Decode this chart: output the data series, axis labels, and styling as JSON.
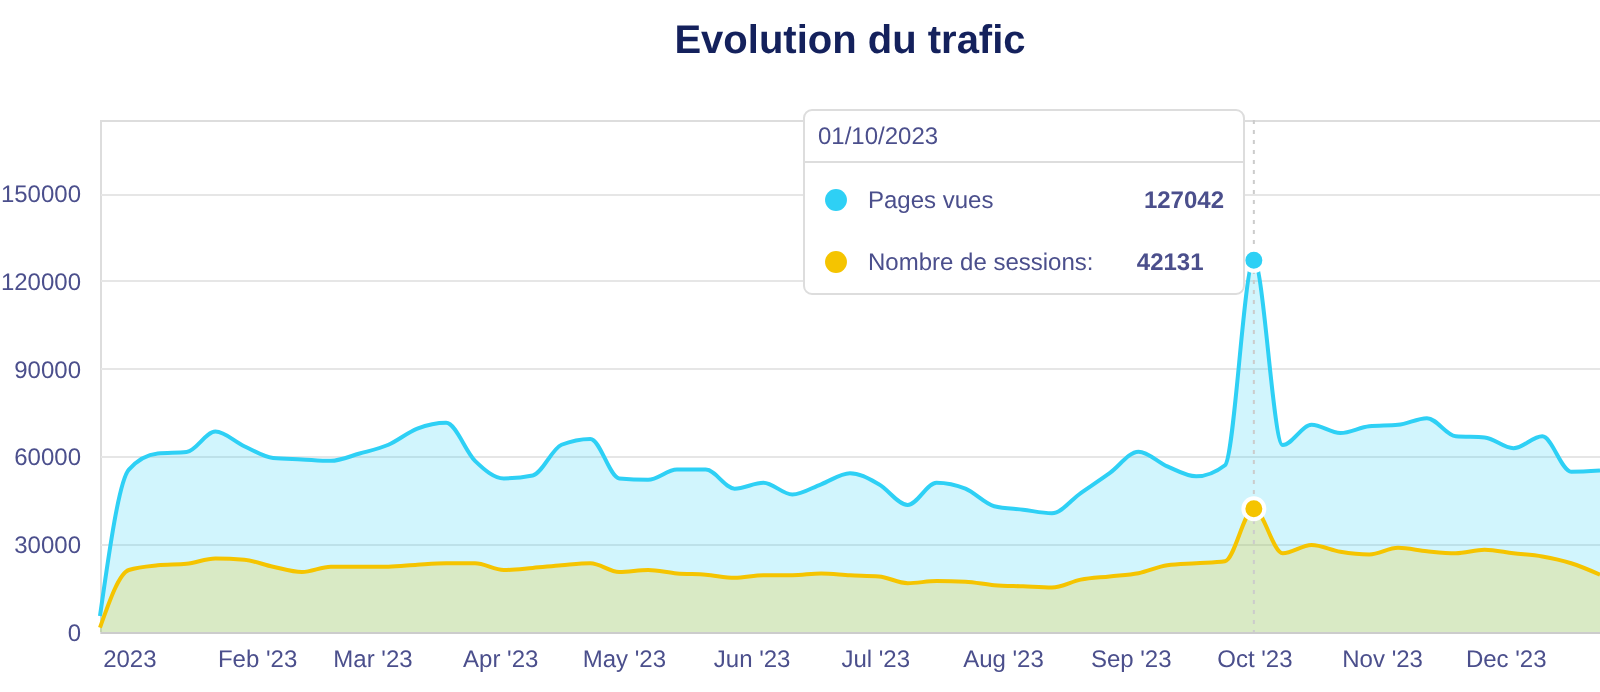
{
  "chart_data": {
    "type": "area",
    "title": "Evolution du trafic",
    "x": [
      "2022-12-25",
      "2023-01-01",
      "2023-01-08",
      "2023-01-15",
      "2023-01-22",
      "2023-01-29",
      "2023-02-05",
      "2023-02-12",
      "2023-02-19",
      "2023-02-26",
      "2023-03-05",
      "2023-03-12",
      "2023-03-19",
      "2023-03-26",
      "2023-04-02",
      "2023-04-09",
      "2023-04-16",
      "2023-04-23",
      "2023-04-30",
      "2023-05-07",
      "2023-05-14",
      "2023-05-21",
      "2023-05-28",
      "2023-06-04",
      "2023-06-11",
      "2023-06-18",
      "2023-06-25",
      "2023-07-02",
      "2023-07-09",
      "2023-07-16",
      "2023-07-23",
      "2023-07-30",
      "2023-08-06",
      "2023-08-13",
      "2023-08-20",
      "2023-08-27",
      "2023-09-03",
      "2023-09-10",
      "2023-09-17",
      "2023-09-24",
      "2023-10-01",
      "2023-10-08",
      "2023-10-15",
      "2023-10-22",
      "2023-10-29",
      "2023-11-05",
      "2023-11-12",
      "2023-11-19",
      "2023-11-26",
      "2023-12-03",
      "2023-12-10",
      "2023-12-17",
      "2023-12-24"
    ],
    "series": [
      {
        "name": "Pages vues",
        "color": "#2ed0f5",
        "values": [
          5500,
          55500,
          61000,
          61500,
          68500,
          63500,
          59500,
          59000,
          58500,
          61000,
          64000,
          69500,
          71500,
          58500,
          52500,
          53500,
          64000,
          66000,
          52500,
          52000,
          55500,
          55500,
          49000,
          51000,
          47000,
          50500,
          54300,
          50500,
          43400,
          51000,
          49000,
          43000,
          41800,
          40600,
          47500,
          54300,
          61600,
          56600,
          53200,
          57000,
          127042,
          63900,
          70800,
          68000,
          70300,
          70800,
          73100,
          66900,
          66500,
          62800,
          66900,
          54800,
          55200
        ]
      },
      {
        "name": "Nombre de sessions:",
        "color": "#f5c400",
        "values": [
          1500,
          21200,
          22800,
          23300,
          25100,
          24700,
          22300,
          20500,
          22300,
          22300,
          22300,
          23000,
          23500,
          23500,
          21200,
          21900,
          22800,
          23500,
          20500,
          21200,
          20000,
          19600,
          18500,
          19400,
          19400,
          20000,
          19400,
          19000,
          16700,
          17400,
          17200,
          16000,
          15600,
          15200,
          17900,
          19000,
          20100,
          22800,
          23500,
          24200,
          42131,
          26900,
          29700,
          27400,
          26500,
          28800,
          27600,
          26900,
          28100,
          26900,
          25800,
          23500,
          19600
        ]
      }
    ],
    "annotations": [
      "01/10/2023",
      "127042",
      "42131"
    ],
    "ref_lines": [
      {
        "axis": "x",
        "value": "2023-10-01",
        "color": "#cccccc",
        "line_style": "dotted"
      }
    ],
    "xlim": [
      "2022-12-25",
      "2023-12-24"
    ],
    "xticks": [
      {
        "value": "2023-01-01",
        "label": "2023"
      },
      {
        "value": "2023-02-01",
        "label": "Feb '23"
      },
      {
        "value": "2023-03-01",
        "label": "Mar '23"
      },
      {
        "value": "2023-04-01",
        "label": "Apr '23"
      },
      {
        "value": "2023-05-01",
        "label": "May '23"
      },
      {
        "value": "2023-06-01",
        "label": "Jun '23"
      },
      {
        "value": "2023-07-01",
        "label": "Jul '23"
      },
      {
        "value": "2023-08-01",
        "label": "Aug '23"
      },
      {
        "value": "2023-09-01",
        "label": "Sep '23"
      },
      {
        "value": "2023-10-01",
        "label": "Oct '23"
      },
      {
        "value": "2023-11-01",
        "label": "Nov '23"
      },
      {
        "value": "2023-12-01",
        "label": "Dec '23"
      }
    ],
    "ylim": [
      0,
      175000
    ],
    "yticks": [
      0,
      30000,
      60000,
      90000,
      120000,
      150000
    ],
    "grid": "y",
    "legend": "top",
    "marker": "none",
    "line_style": "solid"
  }
}
